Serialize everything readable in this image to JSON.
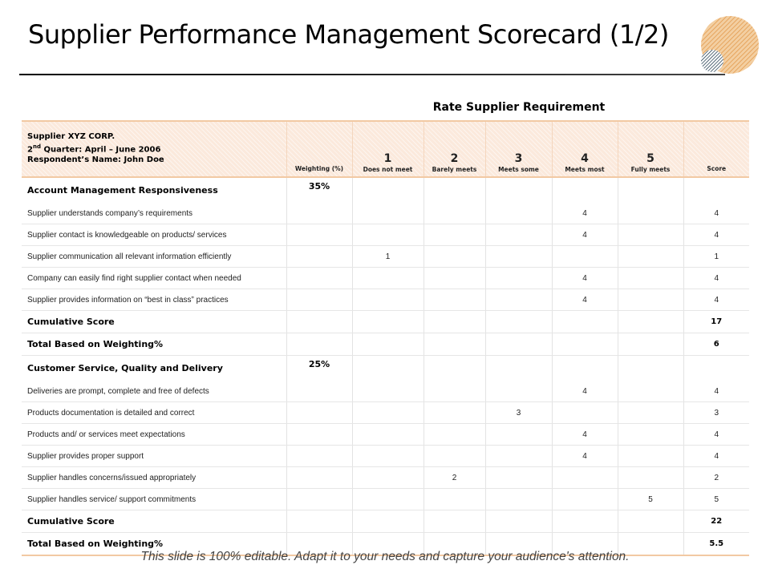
{
  "title": "Supplier Performance Management Scorecard (1/2)",
  "rate_heading": "Rate Supplier Requirement",
  "header": {
    "supplier": "Supplier XYZ CORP.",
    "quarter_ordinal": "2",
    "quarter_suffix": "nd",
    "quarter_rest": " Quarter: April – June 2006",
    "respondent": "Respondent’s Name: John Doe",
    "weighting_label": "Weighting (%)",
    "ratings": [
      {
        "num": "1",
        "label": "Does not meet"
      },
      {
        "num": "2",
        "label": "Barely meets"
      },
      {
        "num": "3",
        "label": "Meets some"
      },
      {
        "num": "4",
        "label": "Meets most"
      },
      {
        "num": "5",
        "label": "Fully meets"
      }
    ],
    "score_label": "Score"
  },
  "rows": [
    {
      "type": "section",
      "label": "Account Management Responsiveness",
      "weight": "35%"
    },
    {
      "type": "item",
      "label": "Supplier understands company’s requirements",
      "r": [
        "",
        "",
        "",
        "4",
        ""
      ],
      "score": "4"
    },
    {
      "type": "item",
      "label": "Supplier contact is knowledgeable on products/ services",
      "r": [
        "",
        "",
        "",
        "4",
        ""
      ],
      "score": "4"
    },
    {
      "type": "item",
      "label": "Supplier communication all relevant information efficiently",
      "r": [
        "1",
        "",
        "",
        "",
        ""
      ],
      "score": "1"
    },
    {
      "type": "item",
      "label": "Company  can easily find right supplier contact when needed",
      "r": [
        "",
        "",
        "",
        "4",
        ""
      ],
      "score": "4"
    },
    {
      "type": "item",
      "label": "Supplier provides information on “best in class” practices",
      "r": [
        "",
        "",
        "",
        "4",
        ""
      ],
      "score": "4"
    },
    {
      "type": "total",
      "label": "Cumulative Score",
      "score": "17"
    },
    {
      "type": "total",
      "label": "Total Based on Weighting%",
      "score": "6"
    },
    {
      "type": "section",
      "label": "Customer Service, Quality and Delivery",
      "weight": "25%"
    },
    {
      "type": "item",
      "label": "Deliveries are prompt,  complete and free of defects",
      "r": [
        "",
        "",
        "",
        "4",
        ""
      ],
      "score": "4"
    },
    {
      "type": "item",
      "label": "Products documentation  is detailed and correct",
      "r": [
        "",
        "",
        "3",
        "",
        ""
      ],
      "score": "3"
    },
    {
      "type": "item",
      "label": "Products and/ or services meet expectations",
      "r": [
        "",
        "",
        "",
        "4",
        ""
      ],
      "score": "4"
    },
    {
      "type": "item",
      "label": "Supplier provides proper support",
      "r": [
        "",
        "",
        "",
        "4",
        ""
      ],
      "score": "4"
    },
    {
      "type": "item",
      "label": "Supplier handles concerns/issued appropriately",
      "r": [
        "",
        "2",
        "",
        "",
        ""
      ],
      "score": "2"
    },
    {
      "type": "item",
      "label": "Supplier handles service/ support commitments",
      "r": [
        "",
        "",
        "",
        "",
        "5"
      ],
      "score": "5"
    },
    {
      "type": "total",
      "label": "Cumulative Score",
      "score": "22"
    },
    {
      "type": "total",
      "label": "Total Based on Weighting%",
      "score": "5.5"
    }
  ],
  "footer": "This slide is 100% editable. Adapt it to your needs and capture your audience's attention.",
  "colors": {
    "accent": "#f2c9a3",
    "header_fill": "#fbe9dc",
    "deco_orange": "#e8a65c",
    "deco_navy": "#1f3a4d"
  }
}
